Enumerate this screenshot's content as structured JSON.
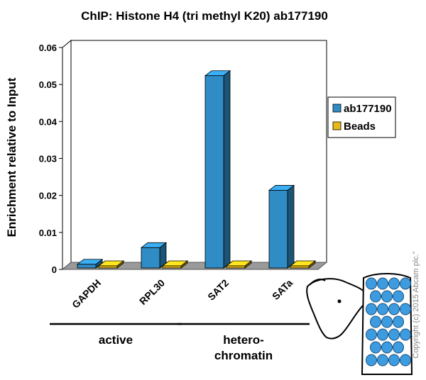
{
  "chart_data": {
    "type": "bar",
    "title": "ChIP: Histone H4 (tri methyl K20) ab177190",
    "ylabel": "Enrichment relative to Input",
    "xlabel": "",
    "ylim": [
      0,
      0.06
    ],
    "yticks": [
      "0",
      "0.01",
      "0.02",
      "0.03",
      "0.04",
      "0.05",
      "0.06"
    ],
    "categories": [
      "GAPDH",
      "RPL30",
      "SAT2",
      "SATa"
    ],
    "series": [
      {
        "name": "ab177190",
        "color": "#2f8cc4",
        "values": [
          0.001,
          0.0055,
          0.052,
          0.021
        ]
      },
      {
        "name": "Beads",
        "color": "#e8b818",
        "values": [
          0.0,
          0.0,
          0.0,
          0.0
        ]
      }
    ],
    "groups": [
      {
        "label_lines": [
          "active"
        ],
        "categories": [
          "GAPDH",
          "RPL30"
        ]
      },
      {
        "label_lines": [
          "hetero-",
          "chromatin"
        ],
        "categories": [
          "SAT2",
          "SATa"
        ]
      }
    ],
    "legend_position": "right",
    "grid": false
  },
  "copyright": "Copyright (c) 2015 Abcam plc.\""
}
